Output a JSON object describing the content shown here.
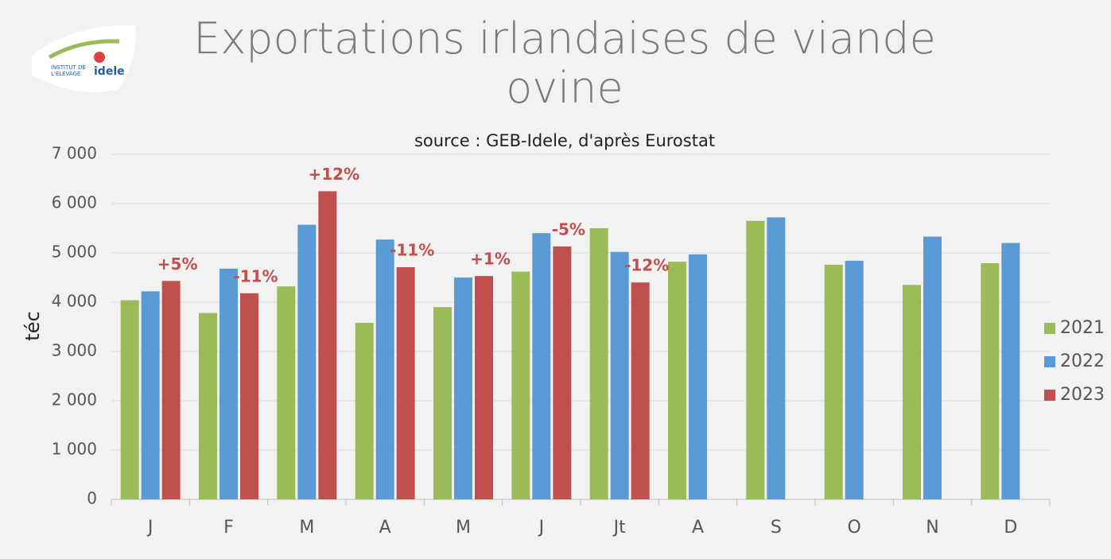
{
  "chart_data": {
    "type": "bar",
    "title": "Exportations irlandaises de viande ovine",
    "subtitle": "source : GEB-Idele, d'après Eurostat",
    "y_label": "téc",
    "logo": {
      "line1": "INSTITUT DE",
      "line2": "L'ELEVAGE",
      "brand": "idele"
    },
    "categories": [
      "J",
      "F",
      "M",
      "A",
      "M",
      "J",
      "Jt",
      "A",
      "S",
      "O",
      "N",
      "D"
    ],
    "series": [
      {
        "name": "2021",
        "color": "#9bbb59",
        "values": [
          4040,
          3780,
          4320,
          3580,
          3900,
          4620,
          5500,
          4820,
          5650,
          4760,
          4350,
          4790
        ]
      },
      {
        "name": "2022",
        "color": "#5b9bd5",
        "values": [
          4220,
          4680,
          5570,
          5270,
          4500,
          5400,
          5020,
          4970,
          5720,
          4840,
          5330,
          5200
        ]
      },
      {
        "name": "2023",
        "color": "#c0504d",
        "values": [
          4430,
          4180,
          6250,
          4710,
          4530,
          5130,
          4400,
          null,
          null,
          null,
          null,
          null
        ]
      }
    ],
    "annotations": [
      "+5%",
      "-11%",
      "+12%",
      "-11%",
      "+1%",
      "-5%",
      "-12%"
    ],
    "annotation_color": "#c0504d",
    "ylim": [
      0,
      7000
    ],
    "yticks": [
      0,
      {
        "value": 1000,
        "label": "1 000"
      },
      {
        "value": 2000,
        "label": "2 000"
      },
      {
        "value": 3000,
        "label": "3 000"
      },
      {
        "value": 4000,
        "label": "4 000"
      },
      {
        "value": 5000,
        "label": "5 000"
      },
      {
        "value": 6000,
        "label": "6 000"
      },
      {
        "value": 7000,
        "label": "7 000"
      }
    ],
    "grid": true,
    "legend": "right"
  }
}
